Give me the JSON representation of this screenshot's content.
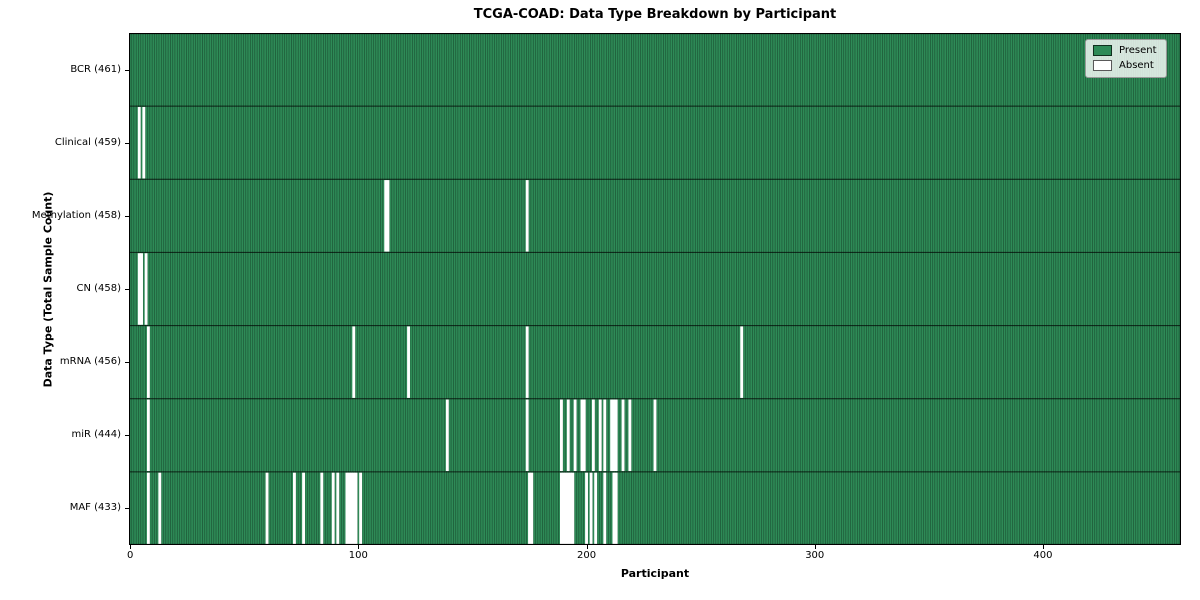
{
  "chart_data": {
    "type": "heatmap",
    "title": "TCGA-COAD: Data Type Breakdown by Participant",
    "xlabel": "Participant",
    "ylabel": "Data Type (Total Sample Count)",
    "n_participants": 461,
    "x_ticks": [
      0,
      100,
      200,
      300,
      400
    ],
    "colors": {
      "present": "#2e8b57",
      "absent": "#ffffff",
      "bar_edge": "rgba(0,0,0,0.45)",
      "row_line": "rgba(0,0,0,0.75)",
      "plot_border": "#000000"
    },
    "legend": {
      "position": "upper right",
      "entries": [
        {
          "label": "Present",
          "color": "#2e8b57"
        },
        {
          "label": "Absent",
          "color": "#ffffff"
        }
      ]
    },
    "rows": [
      {
        "data_type": "BCR",
        "count": 461,
        "label": "BCR (461)",
        "absent_participants": []
      },
      {
        "data_type": "Clinical",
        "count": 459,
        "label": "Clinical (459)",
        "absent_participants": [
          4,
          6
        ]
      },
      {
        "data_type": "Methylation",
        "count": 458,
        "label": "Methylation (458)",
        "absent_participants": [
          112,
          113,
          174
        ]
      },
      {
        "data_type": "CN",
        "count": 458,
        "label": "CN (458)",
        "absent_participants": [
          4,
          5,
          7
        ]
      },
      {
        "data_type": "mRNA",
        "count": 456,
        "label": "mRNA (456)",
        "absent_participants": [
          8,
          98,
          122,
          174,
          268
        ]
      },
      {
        "data_type": "miR",
        "count": 444,
        "label": "miR (444)",
        "absent_participants": [
          8,
          139,
          174,
          189,
          192,
          195,
          198,
          199,
          203,
          206,
          208,
          211,
          212,
          213,
          216,
          219,
          230
        ]
      },
      {
        "data_type": "MAF",
        "count": 433,
        "label": "MAF (433)",
        "absent_participants": [
          8,
          13,
          60,
          72,
          76,
          84,
          89,
          91,
          95,
          96,
          97,
          98,
          99,
          101,
          175,
          176,
          189,
          190,
          191,
          192,
          193,
          194,
          200,
          202,
          204,
          208,
          212,
          213
        ]
      }
    ]
  }
}
